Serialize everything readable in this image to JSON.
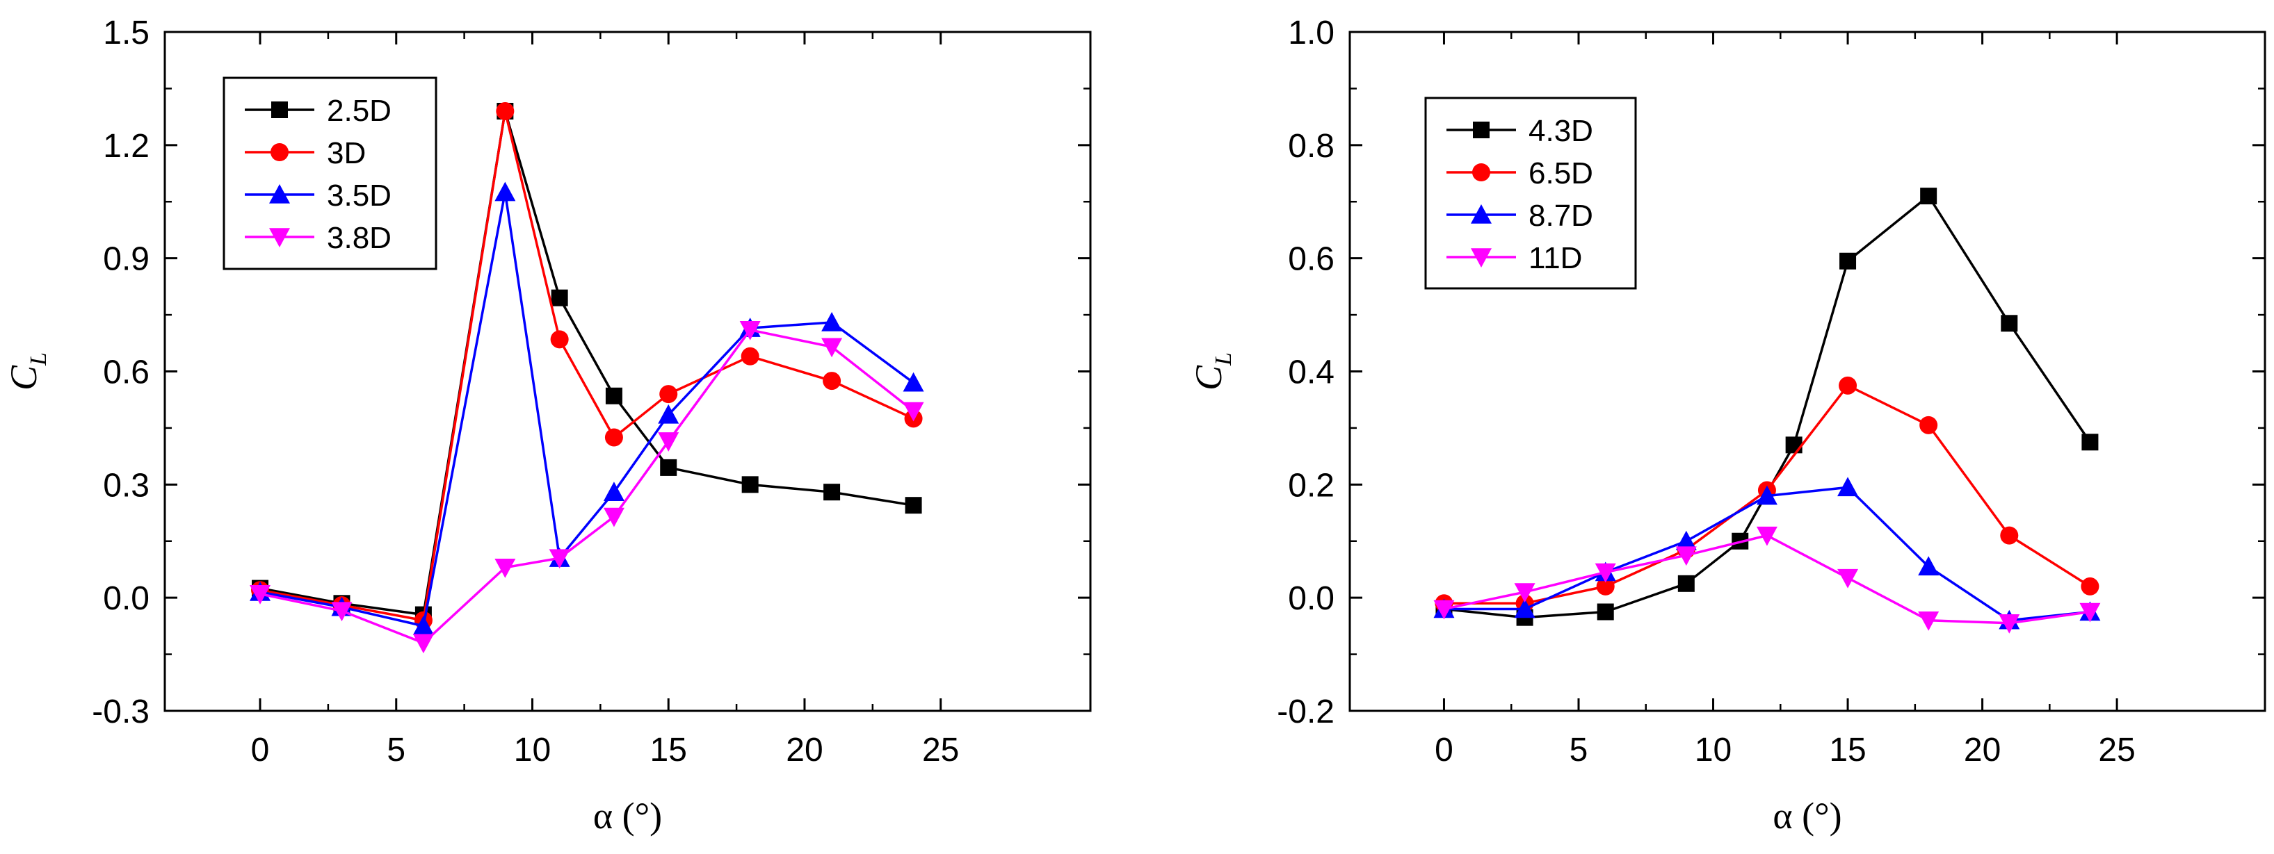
{
  "chart_data": [
    {
      "type": "line",
      "xlabel": "α (°)",
      "ylabel": "C",
      "ylabel_subscript": "L",
      "xlim": [
        -3.5,
        30.5
      ],
      "ylim": [
        -0.3,
        1.5
      ],
      "xticks": [
        0,
        5,
        10,
        15,
        20,
        25
      ],
      "yticks": [
        -0.3,
        0.0,
        0.3,
        0.6,
        0.9,
        1.2,
        1.5
      ],
      "xtick_labels": [
        "0",
        "5",
        "10",
        "15",
        "20",
        "25"
      ],
      "ytick_labels": [
        "-0.3",
        "0.0",
        "0.3",
        "0.6",
        "0.9",
        "1.2",
        "1.5"
      ],
      "legend_position": "top-left",
      "series": [
        {
          "name": "2.5D",
          "color": "#000000",
          "marker": "square",
          "x": [
            0,
            3,
            6,
            9,
            11,
            13,
            15,
            18,
            21,
            24
          ],
          "y": [
            0.025,
            -0.015,
            -0.045,
            1.29,
            0.795,
            0.535,
            0.345,
            0.3,
            0.28,
            0.245
          ]
        },
        {
          "name": "3D",
          "color": "#ff0000",
          "marker": "circle",
          "x": [
            0,
            3,
            6,
            9,
            11,
            13,
            15,
            18,
            21,
            24
          ],
          "y": [
            0.02,
            -0.02,
            -0.06,
            1.29,
            0.685,
            0.425,
            0.54,
            0.64,
            0.575,
            0.475
          ]
        },
        {
          "name": "3.5D",
          "color": "#0000ff",
          "marker": "triangle-up",
          "x": [
            0,
            3,
            6,
            9,
            11,
            13,
            15,
            18,
            21,
            24
          ],
          "y": [
            0.015,
            -0.025,
            -0.075,
            1.075,
            0.105,
            0.28,
            0.485,
            0.715,
            0.73,
            0.57
          ]
        },
        {
          "name": "3.8D",
          "color": "#ff00ff",
          "marker": "triangle-down",
          "x": [
            0,
            3,
            6,
            9,
            11,
            13,
            15,
            18,
            21,
            24
          ],
          "y": [
            0.01,
            -0.035,
            -0.12,
            0.08,
            0.105,
            0.215,
            0.415,
            0.71,
            0.665,
            0.495
          ]
        }
      ]
    },
    {
      "type": "line",
      "xlabel": "α (°)",
      "ylabel": "C",
      "ylabel_subscript": "L",
      "xlim": [
        -3.5,
        30.5
      ],
      "ylim": [
        -0.2,
        1.0
      ],
      "xticks": [
        0,
        5,
        10,
        15,
        20,
        25
      ],
      "yticks": [
        -0.2,
        0.0,
        0.2,
        0.4,
        0.6,
        0.8,
        1.0
      ],
      "xtick_labels": [
        "0",
        "5",
        "10",
        "15",
        "20",
        "25"
      ],
      "ytick_labels": [
        "-0.2",
        "0.0",
        "0.2",
        "0.4",
        "0.6",
        "0.8",
        "1.0"
      ],
      "legend_position": "top-left",
      "series": [
        {
          "name": "4.3D",
          "color": "#000000",
          "marker": "square",
          "x": [
            0,
            3,
            6,
            9,
            11,
            13,
            15,
            18,
            21,
            24
          ],
          "y": [
            -0.02,
            -0.035,
            -0.025,
            0.025,
            0.1,
            0.27,
            0.595,
            0.71,
            0.485,
            0.275
          ]
        },
        {
          "name": "6.5D",
          "color": "#ff0000",
          "marker": "circle",
          "x": [
            0,
            3,
            6,
            9,
            12,
            15,
            18,
            21,
            24
          ],
          "y": [
            -0.01,
            -0.01,
            0.02,
            0.085,
            0.19,
            0.375,
            0.305,
            0.11,
            0.02
          ]
        },
        {
          "name": "8.7D",
          "color": "#0000ff",
          "marker": "triangle-up",
          "x": [
            0,
            3,
            6,
            9,
            12,
            15,
            18,
            21,
            24
          ],
          "y": [
            -0.02,
            -0.02,
            0.045,
            0.1,
            0.18,
            0.195,
            0.055,
            -0.04,
            -0.025
          ]
        },
        {
          "name": "11D",
          "color": "#ff00ff",
          "marker": "triangle-down",
          "x": [
            0,
            3,
            6,
            9,
            12,
            15,
            18,
            21,
            24
          ],
          "y": [
            -0.02,
            0.01,
            0.045,
            0.075,
            0.11,
            0.035,
            -0.04,
            -0.045,
            -0.025
          ]
        }
      ]
    }
  ]
}
